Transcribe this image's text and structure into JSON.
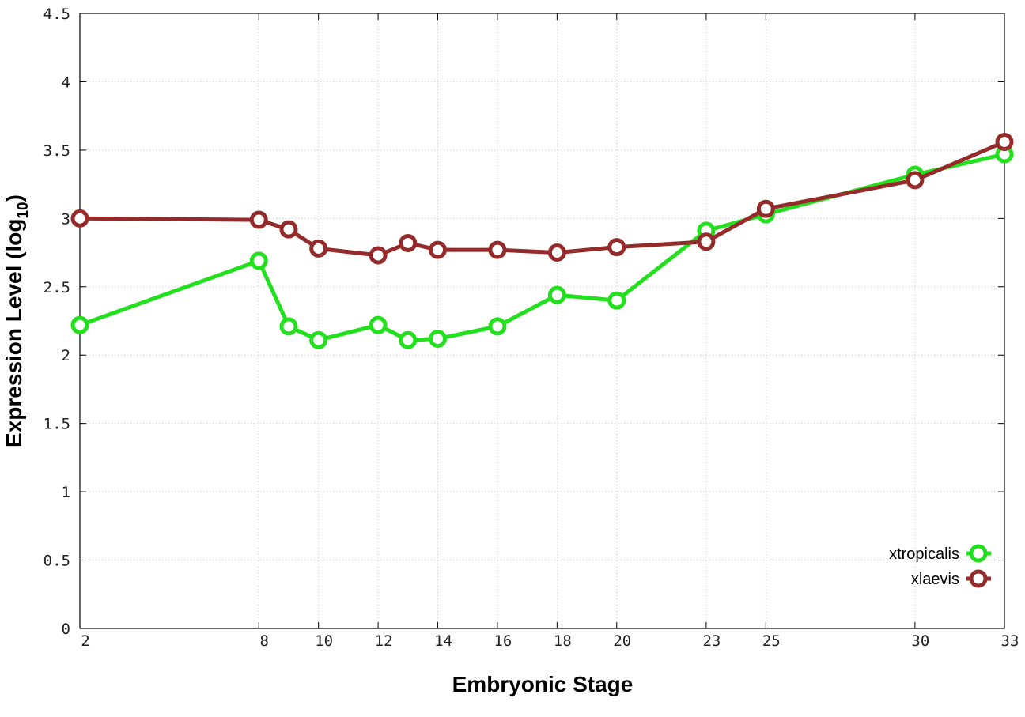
{
  "chart_data": {
    "type": "line",
    "xlabel": "Embryonic Stage",
    "ylabel_main": "Expression Level (log",
    "ylabel_sub": "10",
    "ylabel_close": ")",
    "x": [
      2,
      8,
      9,
      10,
      12,
      13,
      14,
      16,
      18,
      20,
      23,
      25,
      30,
      33
    ],
    "xticks": [
      2,
      8,
      10,
      12,
      14,
      16,
      18,
      20,
      23,
      25,
      30,
      33
    ],
    "xlim": [
      2,
      33
    ],
    "ylim": [
      0,
      4.5
    ],
    "yticks": [
      0,
      0.5,
      1,
      1.5,
      2,
      2.5,
      3,
      3.5,
      4,
      4.5
    ],
    "ytick_labels": [
      "0",
      "0.5",
      "1",
      "1.5",
      "2",
      "2.5",
      "3",
      "3.5",
      "4",
      "4.5"
    ],
    "grid": true,
    "legend_position": "bottom-right",
    "series": [
      {
        "name": "xtropicalis",
        "color": "#22e01e",
        "values": [
          2.22,
          2.69,
          2.21,
          2.11,
          2.22,
          2.11,
          2.12,
          2.21,
          2.44,
          2.4,
          2.91,
          3.03,
          3.32,
          3.47
        ]
      },
      {
        "name": "xlaevis",
        "color": "#952a2a",
        "values": [
          3.0,
          2.99,
          2.92,
          2.78,
          2.73,
          2.82,
          2.77,
          2.77,
          2.75,
          2.79,
          2.83,
          3.07,
          3.28,
          3.56
        ]
      }
    ]
  }
}
